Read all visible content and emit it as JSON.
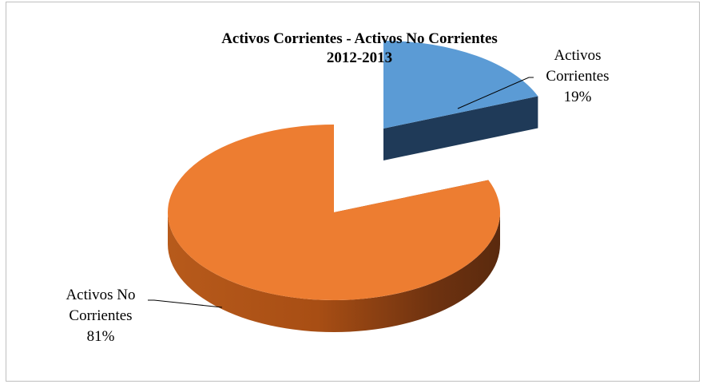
{
  "chart_data": {
    "type": "pie",
    "title": [
      "Activos Corrientes - Activos No Corrientes",
      "2012-2013"
    ],
    "categories": [
      "Activos Corrientes",
      "Activos No Corrientes"
    ],
    "values": [
      19,
      81
    ],
    "unit": "%",
    "colors": [
      "#5b9bd5",
      "#ed7d31"
    ],
    "labels": [
      {
        "lines": [
          "Activos",
          "Corrientes",
          "19%"
        ]
      },
      {
        "lines": [
          "Activos No",
          "Corrientes",
          "81%"
        ]
      }
    ],
    "style": "3d-exploded",
    "legend": "none"
  }
}
